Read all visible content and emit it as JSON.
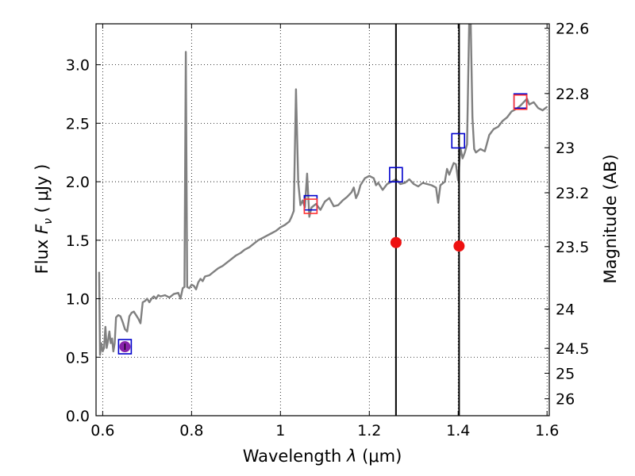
{
  "chart_data": {
    "type": "line",
    "xlabel_text": "Wavelength",
    "xlabel_math": "λ",
    "xlabel_unit": "(μm)",
    "ylabel_text": "Flux",
    "ylabel_math": "F",
    "ylabel_math_sub": "ν",
    "ylabel_unit": "( μJy )",
    "y2label": "Magnitude (AB)",
    "xlim": [
      0.585,
      1.605
    ],
    "ylim": [
      0.0,
      3.35
    ],
    "grid": true,
    "x_ticks": [
      {
        "value": 0.6,
        "label": "0.6"
      },
      {
        "value": 0.8,
        "label": "0.8"
      },
      {
        "value": 1.0,
        "label": "1"
      },
      {
        "value": 1.2,
        "label": "1.2"
      },
      {
        "value": 1.4,
        "label": "1.4"
      },
      {
        "value": 1.6,
        "label": "1.6"
      }
    ],
    "y_ticks": [
      {
        "value": 0.0,
        "label": "0.0"
      },
      {
        "value": 0.5,
        "label": "0.5"
      },
      {
        "value": 1.0,
        "label": "1.0"
      },
      {
        "value": 1.5,
        "label": "1.5"
      },
      {
        "value": 2.0,
        "label": "2.0"
      },
      {
        "value": 2.5,
        "label": "2.5"
      },
      {
        "value": 3.0,
        "label": "3.0"
      }
    ],
    "y2_ticks": [
      {
        "mag": 22.6,
        "label": "22.6"
      },
      {
        "mag": 22.8,
        "label": "22.8"
      },
      {
        "mag": 23.0,
        "label": "23"
      },
      {
        "mag": 23.2,
        "label": "23.2"
      },
      {
        "mag": 23.5,
        "label": "23.5"
      },
      {
        "mag": 24.0,
        "label": "24"
      },
      {
        "mag": 24.5,
        "label": "24.5"
      },
      {
        "mag": 25.0,
        "label": "25"
      },
      {
        "mag": 26.0,
        "label": "26"
      }
    ],
    "vlines_x": [
      1.26,
      1.402
    ],
    "series": [
      {
        "style": "line",
        "color": "#808080",
        "points": [
          [
            0.592,
            1.23
          ],
          [
            0.594,
            0.52
          ],
          [
            0.597,
            0.62
          ],
          [
            0.6,
            0.55
          ],
          [
            0.603,
            0.58
          ],
          [
            0.606,
            0.76
          ],
          [
            0.609,
            0.58
          ],
          [
            0.612,
            0.64
          ],
          [
            0.615,
            0.72
          ],
          [
            0.618,
            0.62
          ],
          [
            0.621,
            0.66
          ],
          [
            0.624,
            0.55
          ],
          [
            0.627,
            0.62
          ],
          [
            0.63,
            0.84
          ],
          [
            0.635,
            0.86
          ],
          [
            0.64,
            0.85
          ],
          [
            0.645,
            0.8
          ],
          [
            0.65,
            0.74
          ],
          [
            0.655,
            0.72
          ],
          [
            0.66,
            0.85
          ],
          [
            0.665,
            0.88
          ],
          [
            0.67,
            0.89
          ],
          [
            0.675,
            0.86
          ],
          [
            0.68,
            0.83
          ],
          [
            0.685,
            0.79
          ],
          [
            0.69,
            0.97
          ],
          [
            0.695,
            0.98
          ],
          [
            0.7,
            1.0
          ],
          [
            0.705,
            0.97
          ],
          [
            0.71,
            1.0
          ],
          [
            0.715,
            1.02
          ],
          [
            0.72,
            1.0
          ],
          [
            0.725,
            1.03
          ],
          [
            0.73,
            1.02
          ],
          [
            0.74,
            1.03
          ],
          [
            0.75,
            1.01
          ],
          [
            0.76,
            1.04
          ],
          [
            0.77,
            1.05
          ],
          [
            0.775,
            1.0
          ],
          [
            0.78,
            1.09
          ],
          [
            0.784,
            1.1
          ],
          [
            0.787,
            3.11
          ],
          [
            0.79,
            1.1
          ],
          [
            0.795,
            1.09
          ],
          [
            0.8,
            1.12
          ],
          [
            0.805,
            1.11
          ],
          [
            0.81,
            1.08
          ],
          [
            0.815,
            1.14
          ],
          [
            0.82,
            1.17
          ],
          [
            0.825,
            1.15
          ],
          [
            0.83,
            1.19
          ],
          [
            0.84,
            1.2
          ],
          [
            0.85,
            1.23
          ],
          [
            0.86,
            1.26
          ],
          [
            0.87,
            1.28
          ],
          [
            0.88,
            1.31
          ],
          [
            0.89,
            1.34
          ],
          [
            0.9,
            1.37
          ],
          [
            0.91,
            1.39
          ],
          [
            0.92,
            1.42
          ],
          [
            0.93,
            1.44
          ],
          [
            0.94,
            1.47
          ],
          [
            0.95,
            1.5
          ],
          [
            0.96,
            1.52
          ],
          [
            0.97,
            1.54
          ],
          [
            0.98,
            1.56
          ],
          [
            0.99,
            1.58
          ],
          [
            1.0,
            1.61
          ],
          [
            1.01,
            1.63
          ],
          [
            1.02,
            1.66
          ],
          [
            1.025,
            1.7
          ],
          [
            1.03,
            1.75
          ],
          [
            1.035,
            2.79
          ],
          [
            1.04,
            2.0
          ],
          [
            1.045,
            1.8
          ],
          [
            1.05,
            1.84
          ],
          [
            1.055,
            1.78
          ],
          [
            1.06,
            2.07
          ],
          [
            1.065,
            1.7
          ],
          [
            1.07,
            1.78
          ],
          [
            1.08,
            1.81
          ],
          [
            1.09,
            1.76
          ],
          [
            1.1,
            1.83
          ],
          [
            1.11,
            1.86
          ],
          [
            1.12,
            1.79
          ],
          [
            1.13,
            1.8
          ],
          [
            1.14,
            1.84
          ],
          [
            1.15,
            1.87
          ],
          [
            1.16,
            1.91
          ],
          [
            1.165,
            1.95
          ],
          [
            1.17,
            1.86
          ],
          [
            1.175,
            1.9
          ],
          [
            1.18,
            1.97
          ],
          [
            1.19,
            2.03
          ],
          [
            1.2,
            2.05
          ],
          [
            1.21,
            2.03
          ],
          [
            1.215,
            1.97
          ],
          [
            1.22,
            1.99
          ],
          [
            1.23,
            1.93
          ],
          [
            1.24,
            1.98
          ],
          [
            1.25,
            2.0
          ],
          [
            1.26,
            2.02
          ],
          [
            1.27,
            1.98
          ],
          [
            1.28,
            1.99
          ],
          [
            1.29,
            2.02
          ],
          [
            1.3,
            1.98
          ],
          [
            1.31,
            1.96
          ],
          [
            1.32,
            1.99
          ],
          [
            1.33,
            1.98
          ],
          [
            1.34,
            1.97
          ],
          [
            1.35,
            1.95
          ],
          [
            1.355,
            1.82
          ],
          [
            1.36,
            1.97
          ],
          [
            1.37,
            2.0
          ],
          [
            1.375,
            2.11
          ],
          [
            1.38,
            2.06
          ],
          [
            1.39,
            2.16
          ],
          [
            1.395,
            2.15
          ],
          [
            1.4,
            2.01
          ],
          [
            1.405,
            2.29
          ],
          [
            1.41,
            2.2
          ],
          [
            1.415,
            2.25
          ],
          [
            1.42,
            2.32
          ],
          [
            1.425,
            3.4
          ],
          [
            1.428,
            3.4
          ],
          [
            1.432,
            2.55
          ],
          [
            1.436,
            2.28
          ],
          [
            1.44,
            2.25
          ],
          [
            1.45,
            2.28
          ],
          [
            1.46,
            2.26
          ],
          [
            1.47,
            2.4
          ],
          [
            1.48,
            2.45
          ],
          [
            1.49,
            2.47
          ],
          [
            1.5,
            2.52
          ],
          [
            1.51,
            2.55
          ],
          [
            1.52,
            2.6
          ],
          [
            1.53,
            2.62
          ],
          [
            1.54,
            2.65
          ],
          [
            1.55,
            2.69
          ],
          [
            1.555,
            2.71
          ],
          [
            1.56,
            2.66
          ],
          [
            1.57,
            2.68
          ],
          [
            1.58,
            2.63
          ],
          [
            1.59,
            2.61
          ],
          [
            1.6,
            2.64
          ]
        ]
      },
      {
        "style": "open-square",
        "color": "#0000cc",
        "points": [
          [
            0.65,
            0.59
          ],
          [
            1.068,
            1.82
          ],
          [
            1.26,
            2.06
          ],
          [
            1.4,
            2.35
          ],
          [
            1.54,
            2.69
          ]
        ]
      },
      {
        "style": "open-square",
        "color": "#ff3333",
        "points": [
          [
            1.068,
            1.79
          ],
          [
            1.54,
            2.68
          ]
        ]
      },
      {
        "style": "filled-circle",
        "color": "#ee1111",
        "points": [
          [
            1.26,
            1.48
          ],
          [
            1.402,
            1.45
          ]
        ]
      },
      {
        "style": "filled-circle",
        "color": "#8822aa",
        "points": [
          [
            0.65,
            0.59
          ]
        ]
      }
    ]
  }
}
